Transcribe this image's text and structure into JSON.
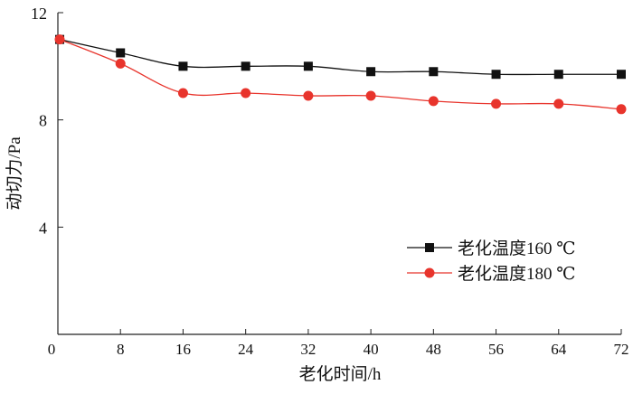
{
  "chart_data": {
    "type": "line",
    "title": "",
    "xlabel": "老化时间/h",
    "ylabel": "动切力/Pa",
    "xlim": [
      0,
      72
    ],
    "ylim": [
      0,
      12
    ],
    "xticks": [
      0,
      8,
      16,
      24,
      32,
      40,
      48,
      56,
      64,
      72
    ],
    "yticks": [
      0,
      4,
      8,
      12
    ],
    "grid": false,
    "legend_position": "right-middle",
    "x": [
      0,
      8,
      16,
      24,
      32,
      40,
      48,
      56,
      64,
      72
    ],
    "series": [
      {
        "name": "老化温度160 ℃",
        "color": "#111111",
        "marker": "square",
        "values": [
          11.0,
          10.5,
          10.0,
          10.0,
          10.0,
          9.8,
          9.8,
          9.7,
          9.7,
          9.7
        ]
      },
      {
        "name": "老化温度180 ℃",
        "color": "#e8342c",
        "marker": "circle",
        "values": [
          11.0,
          10.1,
          9.0,
          9.0,
          8.9,
          8.9,
          8.7,
          8.6,
          8.6,
          8.4
        ]
      }
    ]
  }
}
